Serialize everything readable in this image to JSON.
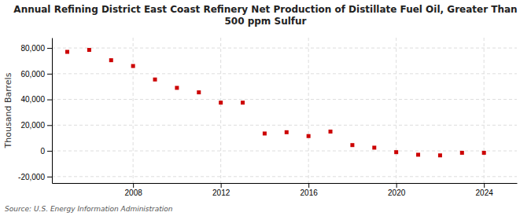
{
  "chart_data": {
    "type": "scatter",
    "title": "Annual Refining District East Coast Refinery Net Production of Distillate Fuel Oil, Greater Than\n500 ppm Sulfur",
    "ylabel": "Thousand Barrels",
    "annotations": [
      "Source: U.S. Energy Information Administration"
    ],
    "x": [
      2005,
      2006,
      2007,
      2008,
      2009,
      2010,
      2011,
      2012,
      2013,
      2014,
      2015,
      2016,
      2017,
      2018,
      2019,
      2020,
      2021,
      2022,
      2023,
      2024
    ],
    "values": [
      77000,
      78500,
      70500,
      66000,
      55500,
      49000,
      45500,
      37500,
      37500,
      13500,
      14500,
      11500,
      15000,
      4500,
      2500,
      -1000,
      -3000,
      -3500,
      -1500,
      -1500
    ],
    "color": "#cc0000",
    "marker": "square",
    "xlim": [
      2004.3,
      2025.5
    ],
    "xticks": [
      2008,
      2012,
      2016,
      2020,
      2024
    ],
    "ylim": [
      -25000,
      88000
    ],
    "yticks": [
      {
        "value": -20000,
        "label": "-20,000"
      },
      0,
      {
        "value": 20000,
        "label": "20,000"
      },
      {
        "value": 40000,
        "label": "40,000"
      },
      {
        "value": 60000,
        "label": "60,000"
      },
      {
        "value": 80000,
        "label": "80,000"
      }
    ],
    "grid": true
  }
}
